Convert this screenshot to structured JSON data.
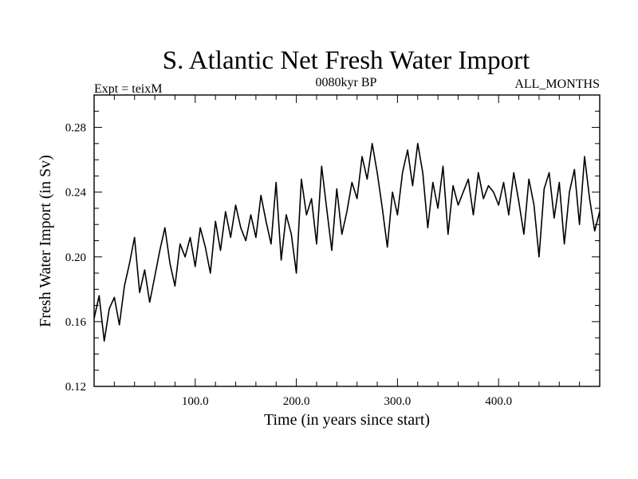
{
  "chart_data": {
    "type": "line",
    "title": "S. Atlantic Net Fresh Water Import",
    "subtitle_left": "Expt = teixM",
    "subtitle_center": "0080kyr BP",
    "subtitle_right": "ALL_MONTHS",
    "xlabel": "Time (in years since start)",
    "ylabel": "Fresh Water Import (in Sv)",
    "xlim": [
      0,
      500
    ],
    "ylim": [
      0.12,
      0.3
    ],
    "xticks": [
      100,
      200,
      300,
      400
    ],
    "xtick_labels": [
      "100.0",
      "200.0",
      "300.0",
      "400.0"
    ],
    "yticks": [
      0.12,
      0.16,
      0.2,
      0.24,
      0.28
    ],
    "ytick_labels": [
      "0.12",
      "0.16",
      "0.20",
      "0.24",
      "0.28"
    ],
    "grid": false,
    "line_color": "#000000",
    "series": [
      {
        "x": [
          0,
          5,
          10,
          15,
          20,
          25,
          30,
          35,
          40,
          45,
          50,
          55,
          60,
          65,
          70,
          75,
          80,
          85,
          90,
          95,
          100,
          105,
          110,
          115,
          120,
          125,
          130,
          135,
          140,
          145,
          150,
          155,
          160,
          165,
          170,
          175,
          180,
          185,
          190,
          195,
          200,
          205,
          210,
          215,
          220,
          225,
          230,
          235,
          240,
          245,
          250,
          255,
          260,
          265,
          270,
          275,
          280,
          285,
          290,
          295,
          300,
          305,
          310,
          315,
          320,
          325,
          330,
          335,
          340,
          345,
          350,
          355,
          360,
          365,
          370,
          375,
          380,
          385,
          390,
          395,
          400,
          405,
          410,
          415,
          420,
          425,
          430,
          435,
          440,
          445,
          450,
          455,
          460,
          465,
          470,
          475,
          480,
          485,
          490,
          495,
          500
        ],
        "values": [
          0.162,
          0.176,
          0.148,
          0.168,
          0.175,
          0.158,
          0.182,
          0.196,
          0.212,
          0.178,
          0.192,
          0.172,
          0.188,
          0.204,
          0.218,
          0.196,
          0.182,
          0.208,
          0.2,
          0.212,
          0.194,
          0.218,
          0.206,
          0.19,
          0.222,
          0.204,
          0.228,
          0.212,
          0.232,
          0.218,
          0.21,
          0.226,
          0.212,
          0.238,
          0.222,
          0.208,
          0.246,
          0.198,
          0.226,
          0.214,
          0.19,
          0.248,
          0.226,
          0.236,
          0.208,
          0.256,
          0.23,
          0.204,
          0.242,
          0.214,
          0.228,
          0.246,
          0.236,
          0.262,
          0.248,
          0.27,
          0.252,
          0.23,
          0.206,
          0.24,
          0.226,
          0.252,
          0.266,
          0.244,
          0.27,
          0.252,
          0.218,
          0.246,
          0.23,
          0.256,
          0.214,
          0.244,
          0.232,
          0.24,
          0.248,
          0.226,
          0.252,
          0.236,
          0.244,
          0.24,
          0.232,
          0.246,
          0.226,
          0.252,
          0.234,
          0.214,
          0.248,
          0.232,
          0.2,
          0.242,
          0.252,
          0.224,
          0.246,
          0.208,
          0.24,
          0.254,
          0.22,
          0.262,
          0.236,
          0.216,
          0.228
        ]
      }
    ]
  }
}
